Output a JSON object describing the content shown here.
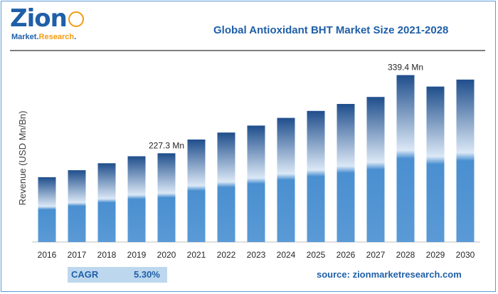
{
  "logo": {
    "word": "Zion",
    "sub_main": "Market.",
    "sub_accent": "Research",
    "sub_end": "."
  },
  "chart_data": {
    "type": "bar",
    "title": "Global Antioxidant BHT Market Size 2021-2028",
    "ylabel": "Revenue (USD Mn/Bn)",
    "xlabel": "",
    "categories": [
      "2016",
      "2017",
      "2018",
      "2019",
      "2020",
      "2021",
      "2022",
      "2023",
      "2024",
      "2025",
      "2026",
      "2027",
      "2028",
      "2029",
      "2030"
    ],
    "values": [
      193,
      203,
      213,
      223,
      227.3,
      247,
      257,
      267,
      278,
      288,
      298,
      308,
      339.4,
      323,
      333
    ],
    "ylim": [
      100,
      345
    ],
    "grid": false,
    "data_labels": [
      {
        "index": 4,
        "text": "227.3 Mn"
      },
      {
        "index": 12,
        "text": "339.4 Mn"
      }
    ]
  },
  "footer": {
    "cagr_label": "CAGR",
    "cagr_value": "5.30%",
    "source": "source: zionmarketresearch.com"
  },
  "colors": {
    "bar_dark": "#1f4e8c",
    "bar_light": "#ffffff",
    "bar_base": "#4a8fd0",
    "title": "#1f5fa8"
  }
}
